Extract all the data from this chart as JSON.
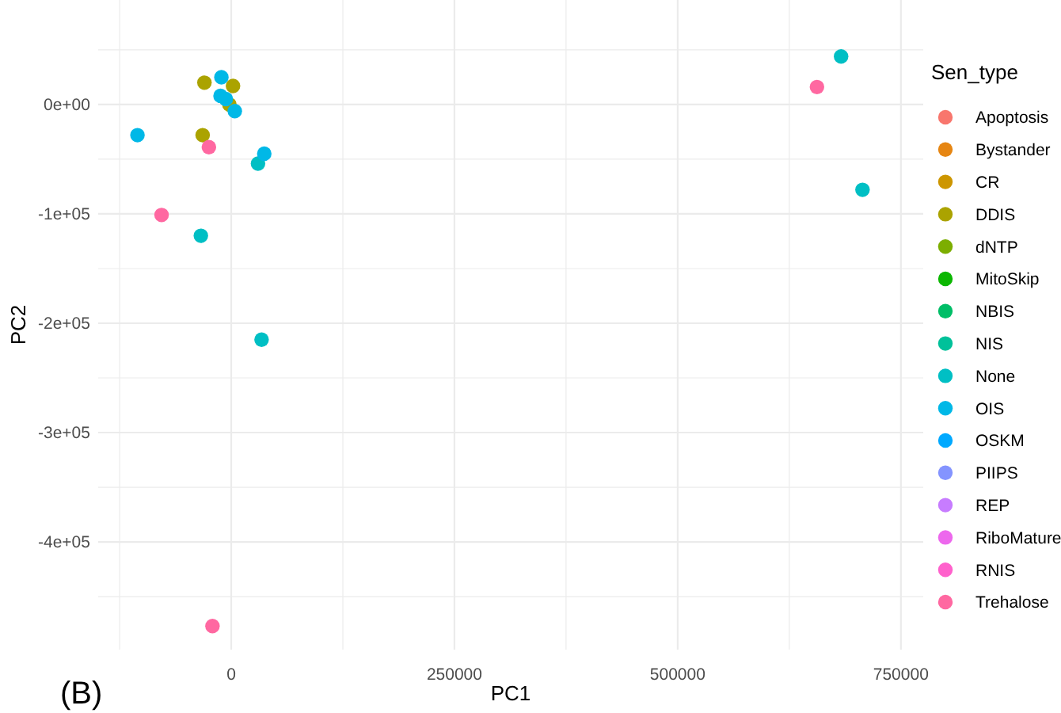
{
  "chart_data": {
    "type": "scatter",
    "xlabel": "PC1",
    "ylabel": "PC2",
    "legend_title": "Sen_type",
    "annotations": [
      "(B)"
    ],
    "xlim": [
      -149000,
      775000
    ],
    "ylim": [
      -498500,
      95600
    ],
    "xticks": [
      {
        "value": -125000,
        "label": null
      },
      0,
      {
        "value": 125000,
        "label": null
      },
      250000,
      {
        "value": 375000,
        "label": null
      },
      500000,
      {
        "value": 625000,
        "label": null
      },
      750000
    ],
    "yticks": [
      {
        "value": -450000,
        "label": null
      },
      {
        "value": -400000,
        "label": "-4e+05"
      },
      {
        "value": -350000,
        "label": null
      },
      {
        "value": -300000,
        "label": "-3e+05"
      },
      {
        "value": -250000,
        "label": null
      },
      {
        "value": -200000,
        "label": "-2e+05"
      },
      {
        "value": -150000,
        "label": null
      },
      {
        "value": -100000,
        "label": "-1e+05"
      },
      {
        "value": -50000,
        "label": null
      },
      {
        "value": 0,
        "label": "0e+00"
      },
      {
        "value": 50000,
        "label": null
      }
    ],
    "grid": true,
    "legend": "right",
    "marker": "circle",
    "series": [
      {
        "name": "Apoptosis",
        "color": "#f8766d"
      },
      {
        "name": "Bystander",
        "color": "#e68613"
      },
      {
        "name": "CR",
        "color": "#cd9600"
      },
      {
        "name": "DDIS",
        "color": "#aba300",
        "x": [
          -30000,
          2000,
          -32000,
          -2000
        ],
        "values": [
          20000,
          17000,
          -28000,
          0
        ]
      },
      {
        "name": "dNTP",
        "color": "#7cae00"
      },
      {
        "name": "MitoSkip",
        "color": "#0cb702"
      },
      {
        "name": "NBIS",
        "color": "#00be67"
      },
      {
        "name": "NIS",
        "color": "#00c19a"
      },
      {
        "name": "None",
        "color": "#00bfc4",
        "x": [
          30000,
          -34000,
          34000,
          683000,
          707000
        ],
        "values": [
          -54000,
          -120000,
          -215000,
          44000,
          -78000
        ]
      },
      {
        "name": "OIS",
        "color": "#00b8e7",
        "x": [
          -11000,
          -12000,
          -6000,
          4000,
          -105000,
          37000
        ],
        "values": [
          25000,
          8000,
          5000,
          -6000,
          -28000,
          -45000
        ]
      },
      {
        "name": "OSKM",
        "color": "#00a9ff"
      },
      {
        "name": "PIIPS",
        "color": "#8494ff"
      },
      {
        "name": "REP",
        "color": "#c77cff"
      },
      {
        "name": "RiboMature",
        "color": "#ed68ed"
      },
      {
        "name": "RNIS",
        "color": "#ff61cc"
      },
      {
        "name": "Trehalose",
        "color": "#ff68a1",
        "x": [
          -25000,
          -78000,
          -21000,
          656000
        ],
        "values": [
          -39000,
          -101000,
          -477000,
          16000
        ]
      }
    ]
  }
}
